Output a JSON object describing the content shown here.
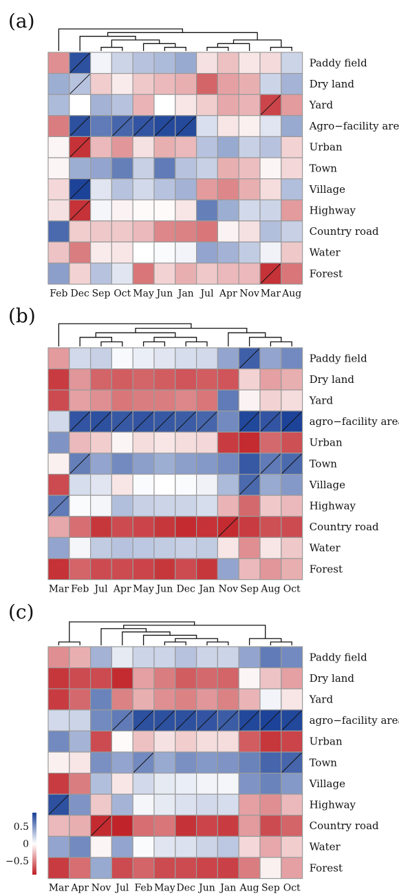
{
  "chart_data": [
    {
      "type": "heatmap",
      "panel_label": "(a)",
      "rows": [
        "Paddy field",
        "Dry land",
        "Yard",
        "Agro−facility area",
        "Urban",
        "Town",
        "Village",
        "Highway",
        "Country road",
        "Water",
        "Forest"
      ],
      "columns": [
        "Feb",
        "Dec",
        "Sep",
        "Oct",
        "May",
        "Jun",
        "Jan",
        "Jul",
        "Apr",
        "Nov",
        "Mar",
        "Aug"
      ],
      "values": [
        [
          -0.45,
          0.82,
          0.05,
          0.2,
          0.28,
          0.32,
          0.4,
          -0.12,
          -0.25,
          -0.1,
          -0.15,
          0.2
        ],
        [
          0.38,
          0.28,
          -0.2,
          -0.08,
          -0.22,
          -0.28,
          -0.32,
          -0.62,
          -0.38,
          -0.32,
          0.2,
          0.35
        ],
        [
          0.32,
          0.0,
          0.36,
          0.28,
          -0.3,
          0.0,
          -0.1,
          -0.2,
          -0.35,
          -0.3,
          -0.75,
          -0.4
        ],
        [
          -0.52,
          0.82,
          0.62,
          0.72,
          0.8,
          0.85,
          0.85,
          0.15,
          -0.1,
          -0.06,
          0.12,
          0.4
        ],
        [
          -0.04,
          -0.82,
          -0.28,
          -0.42,
          -0.12,
          -0.32,
          -0.28,
          0.28,
          0.4,
          0.22,
          0.28,
          -0.18
        ],
        [
          -0.04,
          0.38,
          0.42,
          0.6,
          0.22,
          0.62,
          0.28,
          0.22,
          -0.32,
          -0.26,
          -0.04,
          -0.16
        ],
        [
          -0.16,
          0.88,
          0.12,
          0.28,
          0.18,
          0.28,
          0.36,
          -0.4,
          -0.48,
          -0.32,
          -0.14,
          0.3
        ],
        [
          -0.12,
          -0.82,
          0.04,
          -0.05,
          -0.02,
          -0.02,
          -0.1,
          0.6,
          0.38,
          0.18,
          0.2,
          -0.4
        ],
        [
          0.7,
          -0.2,
          -0.22,
          -0.22,
          -0.28,
          -0.48,
          -0.5,
          -0.55,
          -0.05,
          -0.12,
          0.3,
          0.22
        ],
        [
          -0.24,
          -0.52,
          -0.08,
          -0.1,
          0.0,
          0.02,
          0.05,
          0.42,
          0.36,
          0.24,
          0.06,
          -0.22
        ],
        [
          0.45,
          -0.18,
          0.28,
          0.12,
          -0.55,
          -0.18,
          -0.32,
          -0.22,
          -0.28,
          -0.28,
          -0.82,
          -0.55
        ]
      ],
      "diagonal_cells": [
        [
          0,
          1
        ],
        [
          1,
          1
        ],
        [
          3,
          1
        ],
        [
          3,
          3
        ],
        [
          3,
          4
        ],
        [
          3,
          5
        ],
        [
          3,
          6
        ],
        [
          4,
          1
        ],
        [
          6,
          1
        ],
        [
          7,
          1
        ],
        [
          2,
          10
        ],
        [
          10,
          10
        ]
      ]
    },
    {
      "type": "heatmap",
      "panel_label": "(b)",
      "rows": [
        "Paddy field",
        "Dry land",
        "Yard",
        "agro−facility area",
        "Urban",
        "Town",
        "Village",
        "Highway",
        "Country road",
        "Water",
        "Forest"
      ],
      "columns": [
        "Mar",
        "Feb",
        "Jul",
        "Apr",
        "May",
        "Jun",
        "Dec",
        "Jan",
        "Nov",
        "Sep",
        "Aug",
        "Oct"
      ],
      "values": [
        [
          -0.4,
          0.18,
          0.22,
          0.03,
          0.08,
          0.12,
          0.16,
          0.18,
          0.42,
          0.75,
          0.42,
          0.55
        ],
        [
          -0.78,
          -0.42,
          -0.62,
          -0.65,
          -0.62,
          -0.65,
          -0.68,
          -0.65,
          -0.68,
          -0.18,
          -0.38,
          -0.32
        ],
        [
          -0.72,
          -0.38,
          -0.45,
          -0.55,
          -0.52,
          -0.52,
          -0.48,
          -0.55,
          0.62,
          -0.05,
          -0.18,
          -0.14
        ],
        [
          0.18,
          0.8,
          0.82,
          0.78,
          0.8,
          0.78,
          0.76,
          0.72,
          0.55,
          0.86,
          0.8,
          0.88
        ],
        [
          0.5,
          -0.28,
          -0.2,
          -0.04,
          -0.14,
          -0.1,
          -0.14,
          -0.16,
          -0.78,
          -0.85,
          -0.6,
          -0.7
        ],
        [
          -0.06,
          0.6,
          0.42,
          0.55,
          0.45,
          0.38,
          0.45,
          0.48,
          0.55,
          0.78,
          0.62,
          0.7
        ],
        [
          -0.72,
          0.16,
          0.12,
          -0.1,
          0.02,
          0.0,
          0.02,
          0.06,
          0.32,
          0.7,
          0.4,
          0.48
        ],
        [
          0.62,
          0.02,
          0.04,
          0.3,
          0.22,
          0.2,
          0.2,
          0.16,
          -0.3,
          -0.6,
          -0.22,
          -0.28
        ],
        [
          -0.35,
          -0.58,
          -0.8,
          -0.72,
          -0.75,
          -0.8,
          -0.85,
          -0.82,
          -0.85,
          -0.78,
          -0.7,
          -0.72
        ],
        [
          0.42,
          0.04,
          0.24,
          0.28,
          0.26,
          0.24,
          0.22,
          0.24,
          -0.1,
          -0.45,
          -0.1,
          -0.22
        ],
        [
          -0.82,
          -0.62,
          -0.72,
          -0.72,
          -0.75,
          -0.8,
          -0.72,
          -0.8,
          0.42,
          -0.28,
          -0.42,
          -0.32
        ]
      ],
      "diagonal_cells": [
        [
          0,
          9
        ],
        [
          3,
          1
        ],
        [
          3,
          2
        ],
        [
          3,
          3
        ],
        [
          3,
          4
        ],
        [
          3,
          5
        ],
        [
          3,
          6
        ],
        [
          3,
          7
        ],
        [
          3,
          9
        ],
        [
          3,
          10
        ],
        [
          3,
          11
        ],
        [
          5,
          1
        ],
        [
          5,
          10
        ],
        [
          5,
          11
        ],
        [
          6,
          9
        ],
        [
          7,
          0
        ],
        [
          8,
          8
        ]
      ]
    },
    {
      "type": "heatmap",
      "panel_label": "(c)",
      "rows": [
        "Paddy field",
        "Dry land",
        "Yard",
        "agro−facility area",
        "Urban",
        "Town",
        "Village",
        "Highway",
        "Country road",
        "Water",
        "Forest"
      ],
      "columns": [
        "Mar",
        "Apr",
        "Nov",
        "Jul",
        "Feb",
        "May",
        "Dec",
        "Jun",
        "Jan",
        "Aug",
        "Sep",
        "Oct"
      ],
      "values": [
        [
          -0.45,
          -0.32,
          0.36,
          0.1,
          0.2,
          0.2,
          0.28,
          0.2,
          0.2,
          0.42,
          0.62,
          0.55
        ],
        [
          -0.8,
          -0.72,
          -0.72,
          -0.85,
          -0.38,
          -0.52,
          -0.65,
          -0.6,
          -0.62,
          -0.04,
          -0.24,
          -0.38
        ],
        [
          -0.78,
          -0.6,
          0.58,
          -0.5,
          -0.32,
          -0.45,
          -0.5,
          -0.42,
          -0.5,
          -0.3,
          0.05,
          -0.1
        ],
        [
          0.18,
          0.2,
          0.55,
          0.62,
          0.82,
          0.82,
          0.82,
          0.8,
          0.76,
          0.86,
          0.88,
          0.86
        ],
        [
          0.55,
          0.35,
          -0.72,
          -0.02,
          -0.25,
          -0.12,
          -0.2,
          -0.14,
          -0.14,
          -0.65,
          -0.8,
          -0.75
        ],
        [
          -0.06,
          -0.1,
          0.52,
          0.42,
          0.55,
          0.4,
          0.52,
          0.48,
          0.5,
          0.58,
          0.72,
          0.72
        ],
        [
          -0.78,
          -0.52,
          0.3,
          -0.1,
          0.18,
          0.1,
          0.08,
          0.05,
          0.04,
          0.5,
          0.58,
          0.48
        ],
        [
          0.82,
          0.5,
          -0.22,
          0.35,
          0.04,
          0.1,
          0.14,
          0.18,
          0.16,
          -0.38,
          -0.45,
          -0.28
        ],
        [
          -0.28,
          -0.32,
          -0.85,
          -0.88,
          -0.58,
          -0.55,
          -0.82,
          -0.75,
          -0.78,
          -0.4,
          -0.72,
          -0.62
        ],
        [
          0.42,
          0.55,
          -0.04,
          0.42,
          0.02,
          0.12,
          0.14,
          0.2,
          0.26,
          -0.16,
          -0.35,
          -0.2
        ],
        [
          -0.78,
          -0.58,
          0.4,
          -0.72,
          -0.62,
          -0.72,
          -0.72,
          -0.75,
          -0.76,
          -0.52,
          -0.06,
          -0.38
        ]
      ],
      "diagonal_cells": [
        [
          3,
          3
        ],
        [
          3,
          4
        ],
        [
          3,
          5
        ],
        [
          3,
          6
        ],
        [
          3,
          7
        ],
        [
          3,
          8
        ],
        [
          3,
          9
        ],
        [
          3,
          10
        ],
        [
          3,
          11
        ],
        [
          5,
          4
        ],
        [
          5,
          11
        ],
        [
          7,
          0
        ],
        [
          8,
          2
        ]
      ]
    }
  ],
  "colorbar": {
    "tick_labels": [
      "0.5",
      "0",
      "−0.5"
    ],
    "tick_values": [
      0.5,
      0,
      -0.5
    ],
    "range": [
      -0.9,
      0.9
    ],
    "colors": {
      "negative": "#bf1e24",
      "zero": "#ffffff",
      "positive": "#183f96"
    }
  }
}
